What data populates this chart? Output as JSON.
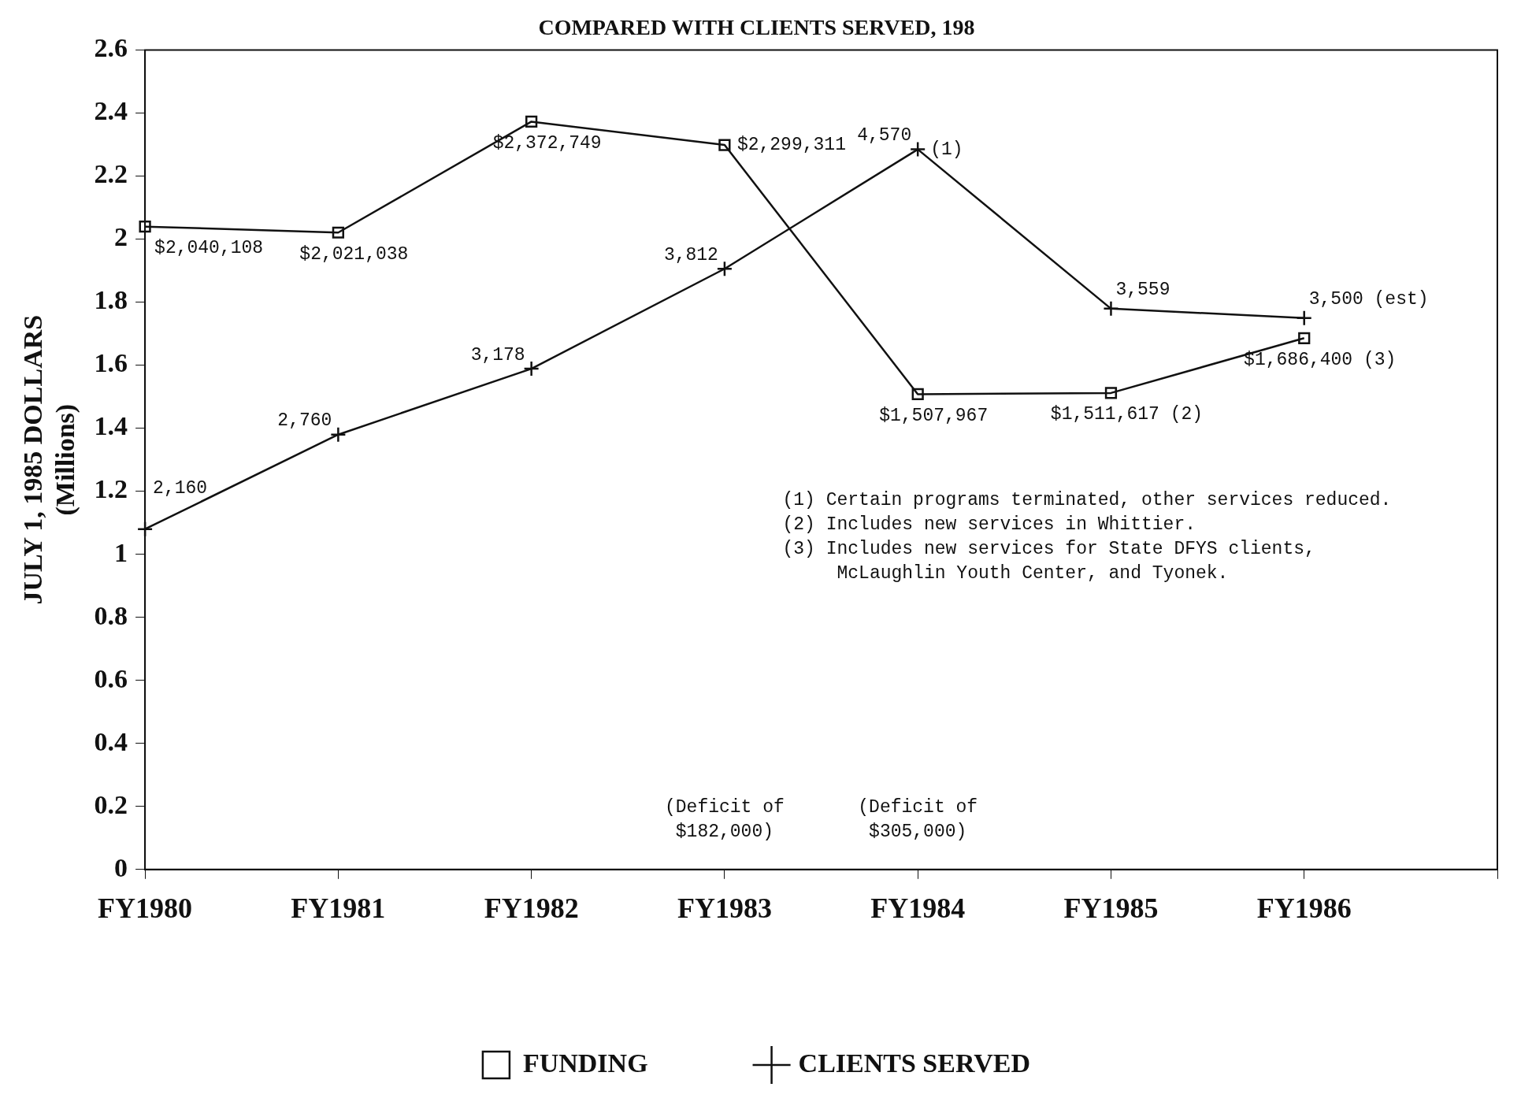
{
  "chart_data": {
    "type": "line",
    "title": "COMPARED WITH CLIENTS SERVED, 198",
    "ylabel": "JULY 1, 1985 DOLLARS\n(Millions)",
    "categories": [
      "FY1980",
      "FY1981",
      "FY1982",
      "FY1983",
      "FY1984",
      "FY1985",
      "FY1986",
      null
    ],
    "ylim": [
      0,
      2.6
    ],
    "yticks": [
      0,
      {
        "value": 0.2,
        "label": "0.2"
      },
      {
        "value": 0.4,
        "label": "0.4"
      },
      {
        "value": 0.6,
        "label": "0.6"
      },
      {
        "value": 0.8,
        "label": "0.8"
      },
      1,
      1.2,
      1.4,
      1.6,
      1.8,
      2,
      2.2,
      2.4,
      2.6
    ],
    "y2lim": [
      0,
      5200
    ],
    "grid": false,
    "legend": "bottom",
    "line_style": "solid",
    "series": [
      {
        "name": "FUNDING",
        "color": "#111111",
        "marker": "square",
        "values": [
          2.04,
          2.021,
          2.373,
          2.299,
          1.508,
          1.512,
          1.686,
          null
        ]
      },
      {
        "name": "CLIENTS SERVED",
        "color": "#111111",
        "marker": "cross",
        "axis": "y2",
        "values": [
          2160,
          2760,
          3178,
          3812,
          4570,
          3559,
          3500,
          null
        ],
        "value_labels": [
          "2,160",
          "2,760",
          "3,178",
          "3,812",
          "4,570",
          "3,559",
          "3,500 (est)",
          null
        ]
      }
    ],
    "annotations": [
      {
        "text": "$2,040,108",
        "x": "FY1980",
        "y": 2.04
      },
      {
        "text": "$2,021,038",
        "x": "FY1981",
        "y": 2.021
      },
      {
        "text": "$2,372,749",
        "x": "FY1982",
        "y": 2.373
      },
      {
        "text": "$2,299,311",
        "x": "FY1983",
        "y": 2.299
      },
      {
        "text": "$1,507,967",
        "x": "FY1984",
        "y": 1.508
      },
      {
        "text": "$1,511,617 (2)",
        "x": "FY1985",
        "y": 1.512
      },
      {
        "text": "$1,686,400 (3)",
        "x": "FY1986",
        "y": 1.686
      },
      {
        "text": "(1)",
        "x": "FY1984",
        "y": 2.285
      },
      "(Deficit of\n$182,000)",
      "(Deficit of\n$305,000)",
      "(1) Certain programs terminated, other services reduced.",
      "(2) Includes new services in Whittier.",
      "(3) Includes new services for State DFYS clients,\n     McLaughlin Youth Center, and Tyonek."
    ]
  }
}
